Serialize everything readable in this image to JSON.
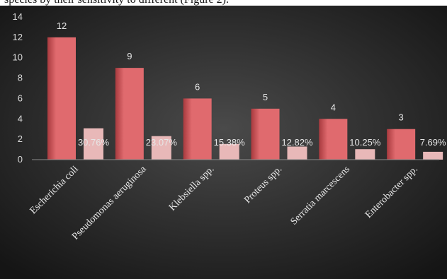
{
  "caption": "species by their sensitivity to different (Figure 2).",
  "colors": {
    "background_center": "#4a4a4a",
    "background_edge": "#151515",
    "bar_main": "#e06a6e",
    "bar_main_dark": "#a83a3e",
    "bar_secondary": "#e8b8b8",
    "axis": "#8c8c8c",
    "text": "#e6e6e6"
  },
  "chart_data": {
    "type": "bar",
    "title": "",
    "xlabel": "",
    "ylabel": "",
    "ylim": [
      0,
      14
    ],
    "yticks": [
      0,
      2,
      4,
      6,
      8,
      10,
      12,
      14
    ],
    "grid": false,
    "categories": [
      "Escherichia coli",
      "Pseudomonas aeruginosa",
      "Klebsiella spp.",
      "Proteus spp.",
      "Serratia marcescens",
      "Enterobacter spp."
    ],
    "series": [
      {
        "values": [
          12,
          9,
          6,
          5,
          4,
          3
        ],
        "labels": [
          "12",
          "9",
          "6",
          "5",
          "4",
          "3"
        ]
      },
      {
        "values": [
          0.3076,
          0.2307,
          0.1538,
          0.1282,
          0.1025,
          0.0769
        ],
        "labels": [
          "30.76%",
          "23.07%",
          "15.38%",
          "12.82%",
          "10.25%",
          "7.69%"
        ]
      }
    ]
  }
}
